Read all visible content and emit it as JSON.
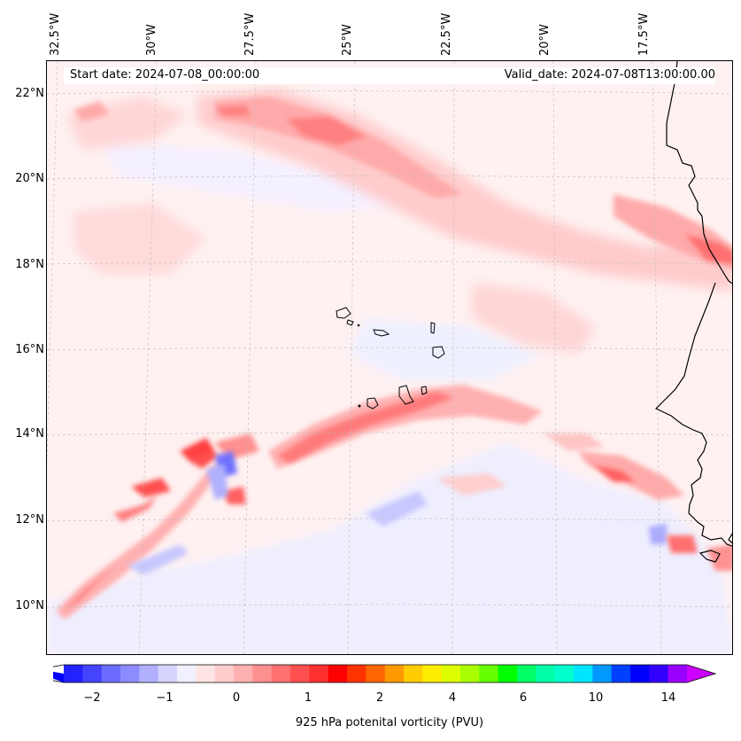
{
  "map": {
    "longitude_labels": [
      "32.5°W",
      "30°W",
      "27.5°W",
      "25°W",
      "22.5°W",
      "20°W",
      "17.5°W"
    ],
    "latitude_labels": [
      "22°N",
      "20°N",
      "18°N",
      "16°N",
      "14°N",
      "12°N",
      "10°N"
    ],
    "start_date": "Start date: 2024-07-08_00:00:00",
    "valid_date": "Valid_date: 2024-07-08T13:00:00.00",
    "field": "925 hPa potential vorticity",
    "features": [
      "Cape Verde islands",
      "West African coastline"
    ]
  },
  "colorbar": {
    "label": "925 hPa potenital vorticity (PVU)",
    "tick_labels": [
      "−2",
      "−1",
      "0",
      "1",
      "2",
      "4",
      "6",
      "10",
      "14"
    ],
    "colors": [
      "#0000ff",
      "#2222ff",
      "#4444ff",
      "#6a6aff",
      "#8c8cff",
      "#b0b0ff",
      "#d4d4ff",
      "#f0f0ff",
      "#ffe4e4",
      "#ffcccc",
      "#ffb0b0",
      "#ff9090",
      "#ff7070",
      "#ff5050",
      "#ff3030",
      "#ff0000",
      "#ff3300",
      "#ff6600",
      "#ff9900",
      "#ffcc00",
      "#ffee00",
      "#ddff00",
      "#aaff00",
      "#66ff00",
      "#00ff00",
      "#00ff66",
      "#00ffaa",
      "#00ffcc",
      "#00e5ff",
      "#0099ff",
      "#0040ff",
      "#0000ff",
      "#3300ff",
      "#9900ff",
      "#cc00ff"
    ]
  }
}
